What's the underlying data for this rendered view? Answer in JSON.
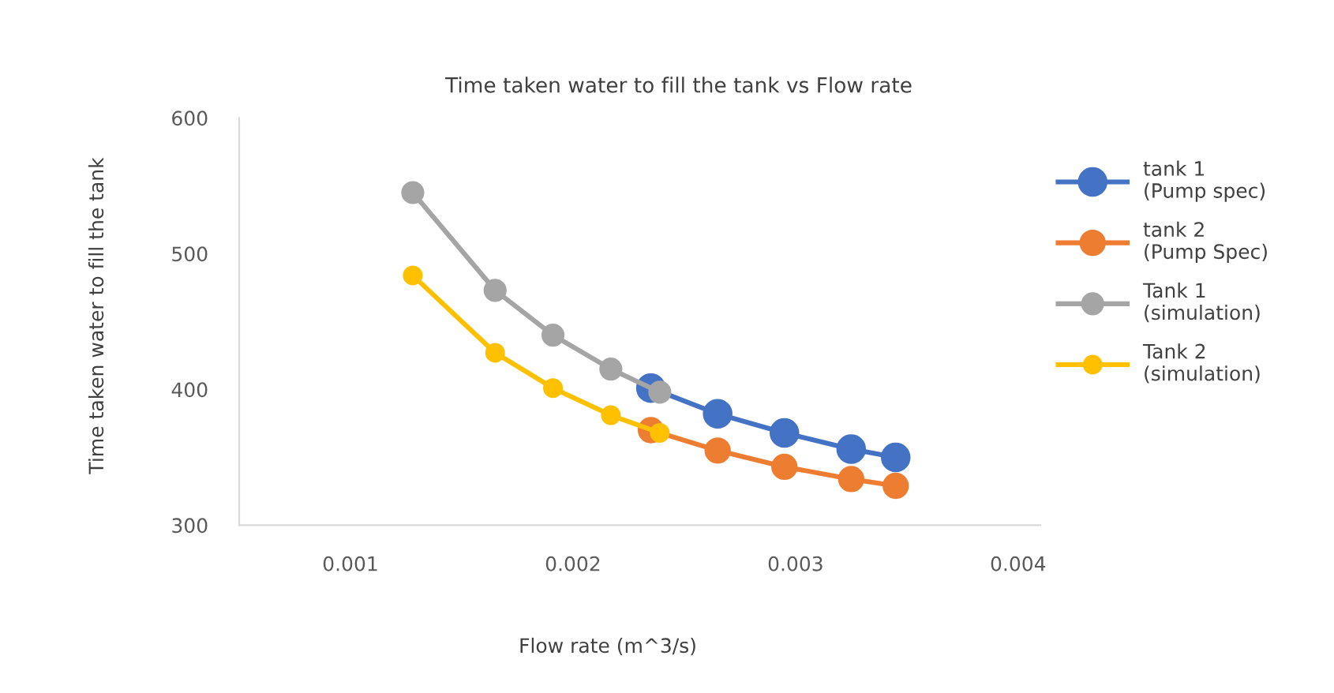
{
  "chart_data": {
    "type": "line",
    "title": "Time taken water to fill the tank vs Flow rate",
    "xlabel": "Flow rate (m^3/s)",
    "ylabel": "Time taken water to fill the tank",
    "xlim": [
      0.0005,
      0.0041
    ],
    "xticks": [
      0.001,
      0.002,
      0.003,
      0.004
    ],
    "ylim": [
      300,
      600
    ],
    "yticks": [
      300,
      400,
      500,
      600
    ],
    "grid": false,
    "legend": "right",
    "marker": "circle",
    "line_style": "solid",
    "series": [
      {
        "name": "tank 1\n(Pump spec)",
        "color": "#4472c4",
        "x": [
          0.00235,
          0.00265,
          0.00295,
          0.00325,
          0.00345
        ],
        "values": [
          401,
          382,
          368,
          356,
          350
        ]
      },
      {
        "name": "tank 2\n(Pump Spec)",
        "color": "#ed7d31",
        "x": [
          0.00235,
          0.00265,
          0.00295,
          0.00325,
          0.00345
        ],
        "values": [
          370,
          355,
          343,
          334,
          329
        ]
      },
      {
        "name": "Tank 1\n(simulation)",
        "color": "#a5a5a5",
        "x": [
          0.00128,
          0.00165,
          0.00191,
          0.00217,
          0.00239
        ],
        "values": [
          545,
          473,
          440,
          415,
          398
        ]
      },
      {
        "name": "Tank 2\n(simulation)",
        "color": "#ffc000",
        "x": [
          0.00128,
          0.00165,
          0.00191,
          0.00217,
          0.00239
        ],
        "values": [
          484,
          427,
          401,
          381,
          368
        ]
      }
    ]
  }
}
